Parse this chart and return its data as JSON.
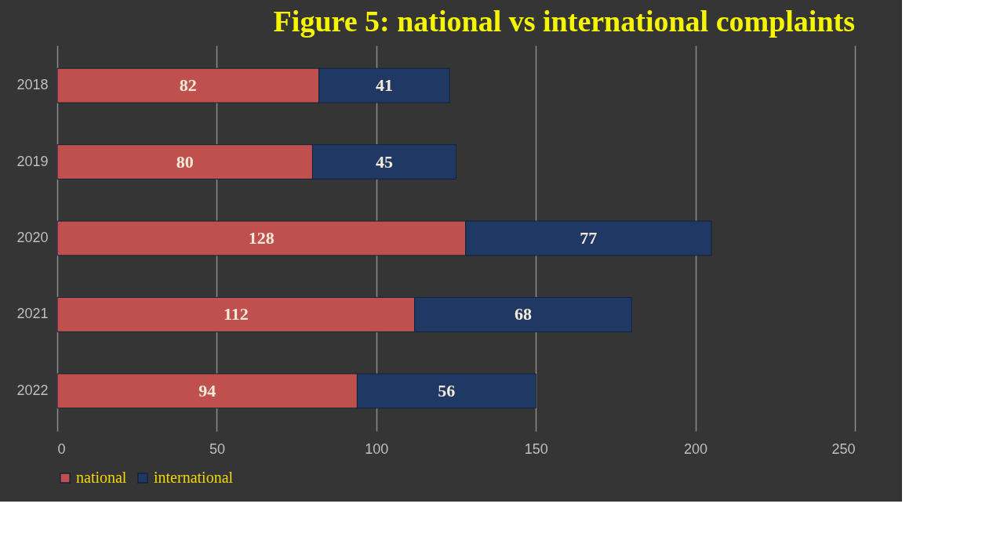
{
  "chart_data": {
    "type": "bar",
    "orientation": "horizontal",
    "stacked": true,
    "title": "Figure 5: national vs international complaints",
    "categories": [
      "2018",
      "2019",
      "2020",
      "2021",
      "2022"
    ],
    "series": [
      {
        "name": "national",
        "color": "#c0504d",
        "values": [
          82,
          80,
          128,
          112,
          94
        ]
      },
      {
        "name": "international",
        "color": "#1f3864",
        "values": [
          41,
          45,
          77,
          68,
          56
        ]
      }
    ],
    "xlim": [
      0,
      250
    ],
    "xticks": [
      0,
      50,
      100,
      150,
      200,
      250
    ],
    "grid": "x",
    "legend": "bottom",
    "data_labels": true
  }
}
